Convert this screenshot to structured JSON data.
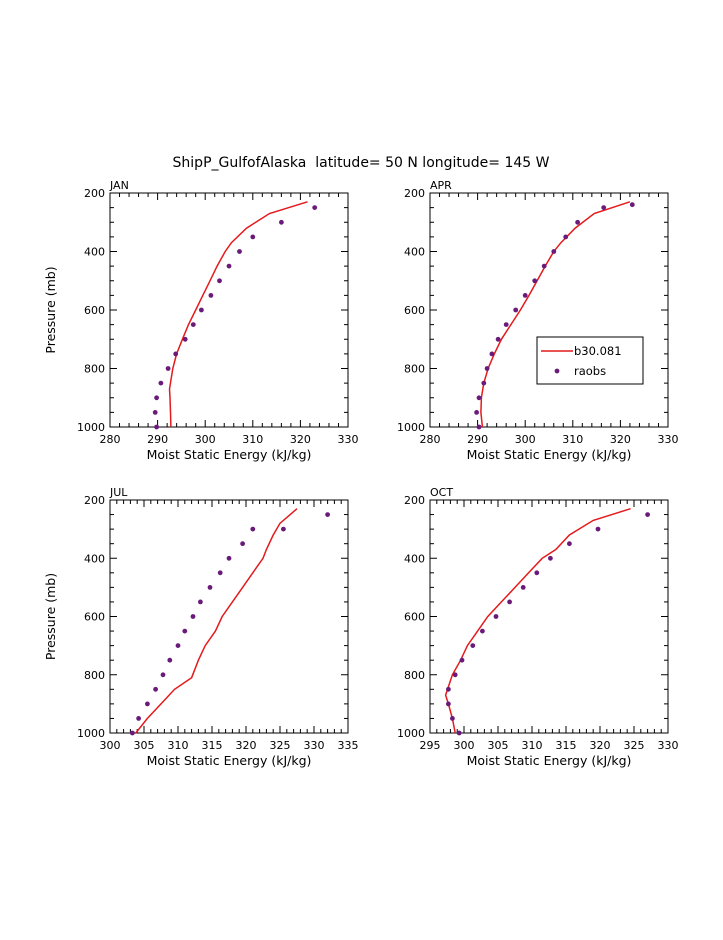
{
  "title": "ShipP_GulfofAlaska  latitude= 50 N longitude= 145 W",
  "colors": {
    "model": "#e41a1c",
    "obs": "#6a1b7a",
    "axis": "#000000"
  },
  "chart_data": [
    {
      "type": "line",
      "panel_label": "JAN",
      "xlabel": "Moist Static Energy (kJ/kg)",
      "ylabel": "Pressure (mb)",
      "xlim": [
        280,
        330
      ],
      "ylim": [
        1000,
        200
      ],
      "x_ticks": [
        280,
        290,
        300,
        310,
        320,
        330
      ],
      "y_ticks": [
        200,
        400,
        600,
        800,
        1000
      ],
      "series": [
        {
          "kind": "line",
          "points": [
            [
              292.8,
              1000
            ],
            [
              292.7,
              950
            ],
            [
              292.6,
              900
            ],
            [
              292.5,
              870
            ],
            [
              293.2,
              800
            ],
            [
              294,
              750
            ],
            [
              295.2,
              700
            ],
            [
              296.5,
              650
            ],
            [
              298,
              600
            ],
            [
              299.5,
              550
            ],
            [
              301,
              500
            ],
            [
              302.5,
              450
            ],
            [
              304.2,
              400
            ],
            [
              305.5,
              370
            ],
            [
              308.7,
              320
            ],
            [
              313.5,
              270
            ],
            [
              321.5,
              230
            ]
          ]
        },
        {
          "kind": "scatter",
          "points": [
            [
              289.8,
              1000
            ],
            [
              289.5,
              950
            ],
            [
              289.8,
              900
            ],
            [
              290.7,
              850
            ],
            [
              292.2,
              800
            ],
            [
              293.8,
              750
            ],
            [
              295.8,
              700
            ],
            [
              297.5,
              650
            ],
            [
              299.2,
              600
            ],
            [
              301.2,
              550
            ],
            [
              303,
              500
            ],
            [
              305,
              450
            ],
            [
              307.2,
              400
            ],
            [
              310,
              350
            ],
            [
              316,
              300
            ],
            [
              323,
              250
            ]
          ]
        }
      ]
    },
    {
      "type": "line",
      "panel_label": "APR",
      "xlabel": "Moist Static Energy (kJ/kg)",
      "ylabel": "",
      "xlim": [
        280,
        330
      ],
      "ylim": [
        1000,
        200
      ],
      "x_ticks": [
        280,
        290,
        300,
        310,
        320,
        330
      ],
      "y_ticks": [
        200,
        400,
        600,
        800,
        1000
      ],
      "legend": {
        "location": "right",
        "entries": [
          "b30.081",
          "raobs"
        ]
      },
      "series": [
        {
          "name": "b30.081",
          "kind": "line",
          "points": [
            [
              291,
              1000
            ],
            [
              290.7,
              950
            ],
            [
              290.8,
              900
            ],
            [
              291.3,
              850
            ],
            [
              292.2,
              800
            ],
            [
              293.5,
              750
            ],
            [
              295,
              700
            ],
            [
              297,
              650
            ],
            [
              299,
              600
            ],
            [
              300.8,
              550
            ],
            [
              302.5,
              500
            ],
            [
              304.2,
              450
            ],
            [
              306,
              400
            ],
            [
              307.5,
              370
            ],
            [
              310.5,
              320
            ],
            [
              314.5,
              270
            ],
            [
              322,
              230
            ]
          ]
        },
        {
          "name": "raobs",
          "kind": "scatter",
          "points": [
            [
              290.3,
              1000
            ],
            [
              289.8,
              950
            ],
            [
              290.3,
              900
            ],
            [
              291.3,
              850
            ],
            [
              292,
              800
            ],
            [
              293,
              750
            ],
            [
              294.3,
              700
            ],
            [
              296,
              650
            ],
            [
              298,
              600
            ],
            [
              300,
              550
            ],
            [
              302,
              500
            ],
            [
              304,
              450
            ],
            [
              306,
              400
            ],
            [
              308.5,
              350
            ],
            [
              311,
              300
            ],
            [
              316.5,
              250
            ],
            [
              322.5,
              240
            ]
          ]
        }
      ]
    },
    {
      "type": "line",
      "panel_label": "JUL",
      "xlabel": "Moist Static Energy (kJ/kg)",
      "ylabel": "Pressure (mb)",
      "xlim": [
        300,
        335
      ],
      "ylim": [
        1000,
        200
      ],
      "x_ticks": [
        300,
        305,
        310,
        315,
        320,
        325,
        330,
        335
      ],
      "y_ticks": [
        200,
        400,
        600,
        800,
        1000
      ],
      "series": [
        {
          "kind": "line",
          "points": [
            [
              303.8,
              1000
            ],
            [
              305.5,
              950
            ],
            [
              307.5,
              900
            ],
            [
              309.5,
              850
            ],
            [
              312,
              810
            ],
            [
              313,
              750
            ],
            [
              314,
              700
            ],
            [
              315.5,
              650
            ],
            [
              316.5,
              600
            ],
            [
              318,
              550
            ],
            [
              319.5,
              500
            ],
            [
              321,
              450
            ],
            [
              322.5,
              400
            ],
            [
              323,
              370
            ],
            [
              324,
              320
            ],
            [
              325,
              280
            ],
            [
              327.5,
              230
            ]
          ]
        },
        {
          "kind": "scatter",
          "points": [
            [
              303.3,
              1000
            ],
            [
              304.2,
              950
            ],
            [
              305.5,
              900
            ],
            [
              306.7,
              850
            ],
            [
              307.8,
              800
            ],
            [
              308.8,
              750
            ],
            [
              310,
              700
            ],
            [
              311,
              650
            ],
            [
              312.2,
              600
            ],
            [
              313.3,
              550
            ],
            [
              314.7,
              500
            ],
            [
              316.2,
              450
            ],
            [
              317.5,
              400
            ],
            [
              319.5,
              350
            ],
            [
              321,
              300
            ],
            [
              332,
              250
            ],
            [
              325.5,
              300
            ]
          ]
        }
      ]
    },
    {
      "type": "line",
      "panel_label": "OCT",
      "xlabel": "Moist Static Energy (kJ/kg)",
      "ylabel": "",
      "xlim": [
        295,
        330
      ],
      "ylim": [
        1000,
        200
      ],
      "x_ticks": [
        295,
        300,
        305,
        310,
        315,
        320,
        325,
        330
      ],
      "y_ticks": [
        200,
        400,
        600,
        800,
        1000
      ],
      "series": [
        {
          "kind": "line",
          "points": [
            [
              298.7,
              1000
            ],
            [
              298.3,
              950
            ],
            [
              297.7,
              900
            ],
            [
              297.3,
              870
            ],
            [
              298.3,
              800
            ],
            [
              299.5,
              750
            ],
            [
              300.5,
              700
            ],
            [
              302,
              650
            ],
            [
              303.5,
              600
            ],
            [
              305.5,
              550
            ],
            [
              307.5,
              500
            ],
            [
              309.5,
              450
            ],
            [
              311.5,
              400
            ],
            [
              313.5,
              370
            ],
            [
              315.5,
              320
            ],
            [
              319,
              270
            ],
            [
              324.5,
              230
            ]
          ]
        },
        {
          "kind": "scatter",
          "points": [
            [
              299.3,
              1000
            ],
            [
              298.3,
              950
            ],
            [
              297.7,
              900
            ],
            [
              297.7,
              850
            ],
            [
              298.7,
              800
            ],
            [
              299.7,
              750
            ],
            [
              301.3,
              700
            ],
            [
              302.7,
              650
            ],
            [
              304.7,
              600
            ],
            [
              306.7,
              550
            ],
            [
              308.7,
              500
            ],
            [
              310.7,
              450
            ],
            [
              312.7,
              400
            ],
            [
              315.5,
              350
            ],
            [
              319.7,
              300
            ],
            [
              327,
              250
            ]
          ]
        }
      ]
    }
  ]
}
